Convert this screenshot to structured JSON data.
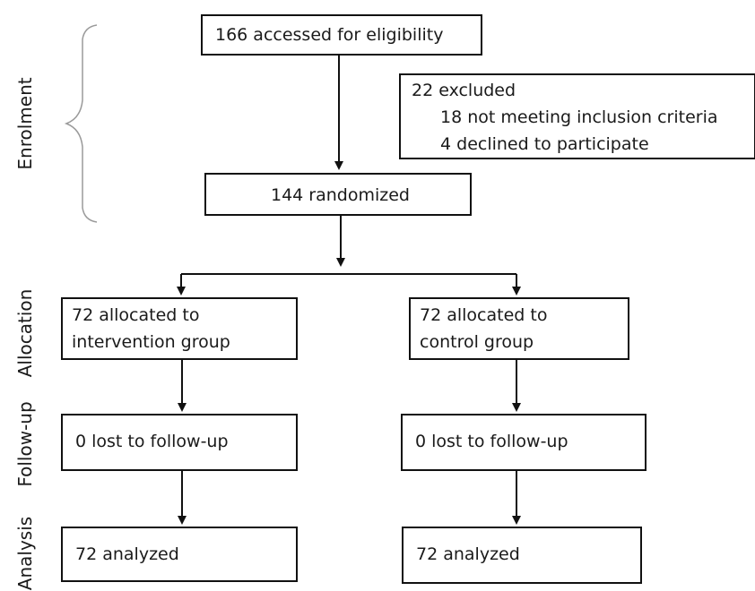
{
  "stages": {
    "enrolment": "Enrolment",
    "allocation": "Allocation",
    "follow_up": "Follow-up",
    "analysis": "Analysis"
  },
  "boxes": {
    "eligibility": "166 accessed for eligibility",
    "excluded": {
      "title": "22 excluded",
      "reason_1": "18 not meeting inclusion criteria",
      "reason_2": "4 declined to participate"
    },
    "randomized": "144 randomized",
    "intervention_alloc": {
      "line_1": "72 allocated to",
      "line_2": "intervention group"
    },
    "control_alloc": {
      "line_1": "72 allocated to",
      "line_2": "control group"
    },
    "intervention_followup": "0 lost to follow-up",
    "control_followup": "0 lost to follow-up",
    "intervention_analysis": "72 analyzed",
    "control_analysis": "72 analyzed"
  },
  "colors": {
    "stroke": "#111111",
    "brace": "#9a9a9a",
    "text": "#1a1a1a"
  }
}
